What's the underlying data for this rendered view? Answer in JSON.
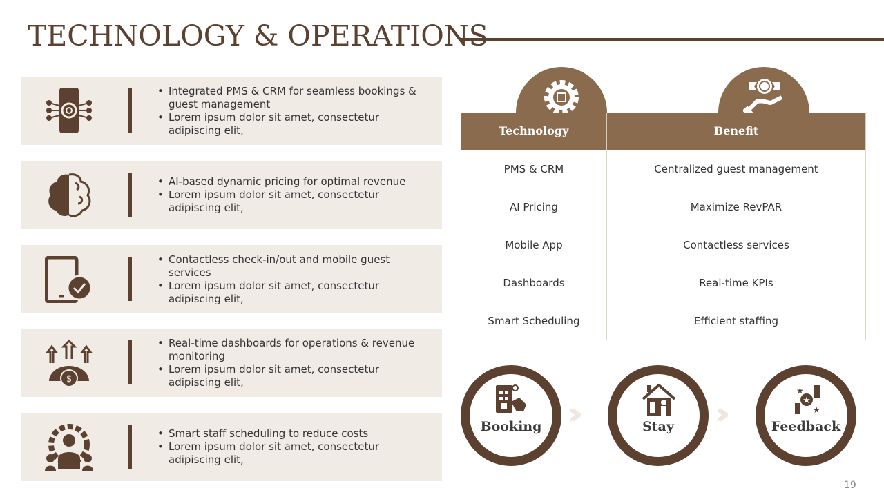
{
  "title": "TECHNOLOGY & OPERATIONS",
  "colors": {
    "dark_brown": "#5c4130",
    "header_brown": "#8b6b4d",
    "card_bg": "#f0ebe5"
  },
  "cards": [
    {
      "icon": "smartphone-gear-circuit-icon",
      "bullets": [
        "Integrated PMS & CRM for seamless bookings & guest management",
        "Lorem ipsum dolor sit amet, consectetur adipiscing elit,"
      ]
    },
    {
      "icon": "brain-icon",
      "bullets": [
        "AI-based dynamic pricing for optimal revenue",
        "Lorem ipsum dolor sit amet, consectetur adipiscing elit,"
      ]
    },
    {
      "icon": "tablet-check-icon",
      "bullets": [
        "Contactless check-in/out and mobile guest services",
        "Lorem ipsum dolor sit amet, consectetur adipiscing elit,"
      ]
    },
    {
      "icon": "gear-dollar-arrows-icon",
      "bullets": [
        "Real-time dashboards for operations & revenue monitoring",
        "Lorem ipsum dolor sit amet, consectetur adipiscing elit,"
      ]
    },
    {
      "icon": "staff-gear-icon",
      "bullets": [
        "Smart staff scheduling to reduce costs",
        "Lorem ipsum dolor sit amet, consectetur adipiscing elit,"
      ]
    }
  ],
  "table": {
    "headers": [
      "Technology",
      "Benefit"
    ],
    "header_icons": [
      "gear-chip-icon",
      "hand-award-icon"
    ],
    "rows": [
      [
        "PMS & CRM",
        "Centralized guest management"
      ],
      [
        "AI Pricing",
        "Maximize RevPAR"
      ],
      [
        "Mobile App",
        "Contactless services"
      ],
      [
        "Dashboards",
        "Real-time KPIs"
      ],
      [
        "Smart Scheduling",
        "Efficient staffing"
      ]
    ]
  },
  "journey": [
    {
      "label": "Booking",
      "icon": "mobile-booking-hand-icon"
    },
    {
      "label": "Stay",
      "icon": "house-guest-icon"
    },
    {
      "label": "Feedback",
      "icon": "star-rating-hands-icon"
    }
  ],
  "page_number": "19"
}
